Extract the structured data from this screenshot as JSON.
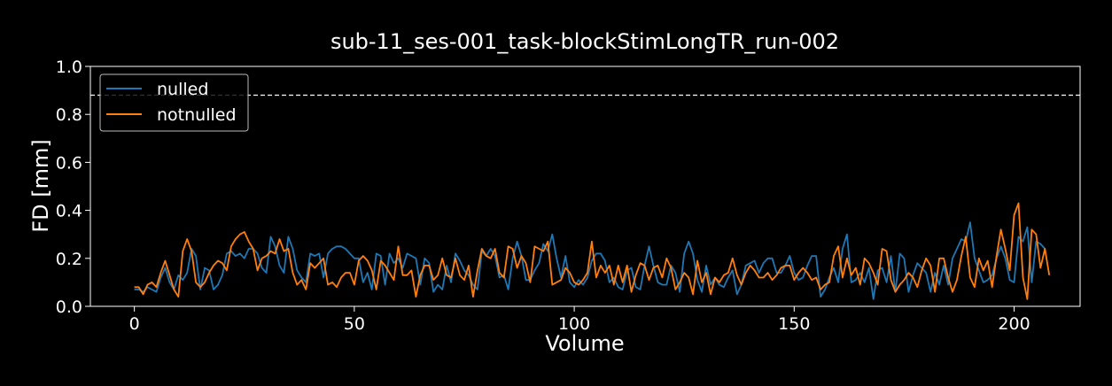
{
  "chart_data": {
    "type": "line",
    "title": "sub-11_ses-001_task-blockStimLongTR_run-002",
    "xlabel": "Volume",
    "ylabel": "FD [mm]",
    "xlim": [
      -10,
      215
    ],
    "ylim": [
      0.0,
      1.0
    ],
    "xticks": [
      0,
      50,
      100,
      150,
      200
    ],
    "yticks": [
      0.0,
      0.2,
      0.4,
      0.6,
      0.8,
      1.0
    ],
    "ytick_labels": [
      "0.0",
      "0.2",
      "0.4",
      "0.6",
      "0.8",
      "1.0"
    ],
    "threshold": 0.88,
    "legend_position": "top-left",
    "series": [
      {
        "name": "nulled",
        "color": "#1f77b4",
        "values": [
          0.07,
          0.07,
          0.06,
          0.08,
          0.07,
          0.06,
          0.12,
          0.16,
          0.1,
          0.07,
          0.13,
          0.11,
          0.14,
          0.24,
          0.21,
          0.07,
          0.16,
          0.15,
          0.07,
          0.09,
          0.13,
          0.22,
          0.23,
          0.21,
          0.22,
          0.2,
          0.24,
          0.24,
          0.22,
          0.16,
          0.14,
          0.29,
          0.25,
          0.17,
          0.14,
          0.29,
          0.24,
          0.15,
          0.12,
          0.1,
          0.22,
          0.21,
          0.22,
          0.12,
          0.22,
          0.24,
          0.25,
          0.25,
          0.24,
          0.22,
          0.2,
          0.2,
          0.1,
          0.14,
          0.07,
          0.22,
          0.21,
          0.09,
          0.22,
          0.18,
          0.2,
          0.16,
          0.22,
          0.21,
          0.2,
          0.09,
          0.2,
          0.18,
          0.06,
          0.09,
          0.07,
          0.17,
          0.1,
          0.22,
          0.19,
          0.15,
          0.13,
          0.09,
          0.07,
          0.23,
          0.21,
          0.24,
          0.21,
          0.12,
          0.13,
          0.07,
          0.2,
          0.27,
          0.21,
          0.11,
          0.11,
          0.15,
          0.18,
          0.26,
          0.23,
          0.3,
          0.2,
          0.12,
          0.21,
          0.1,
          0.08,
          0.11,
          0.09,
          0.12,
          0.19,
          0.22,
          0.22,
          0.19,
          0.1,
          0.12,
          0.08,
          0.07,
          0.15,
          0.16,
          0.08,
          0.07,
          0.17,
          0.25,
          0.17,
          0.1,
          0.09,
          0.09,
          0.17,
          0.14,
          0.06,
          0.22,
          0.27,
          0.22,
          0.11,
          0.06,
          0.17,
          0.09,
          0.12,
          0.09,
          0.08,
          0.12,
          0.15,
          0.05,
          0.09,
          0.17,
          0.18,
          0.19,
          0.14,
          0.18,
          0.2,
          0.2,
          0.14,
          0.14,
          0.17,
          0.21,
          0.14,
          0.11,
          0.12,
          0.17,
          0.21,
          0.21,
          0.04,
          0.07,
          0.12,
          0.16,
          0.1,
          0.24,
          0.3,
          0.1,
          0.11,
          0.14,
          0.1,
          0.16,
          0.03,
          0.15,
          0.16,
          0.1,
          0.21,
          0.06,
          0.22,
          0.2,
          0.06,
          0.13,
          0.18,
          0.16,
          0.14,
          0.06,
          0.14,
          0.09,
          0.17,
          0.09,
          0.2,
          0.24,
          0.28,
          0.27,
          0.35,
          0.2,
          0.15,
          0.1,
          0.11,
          0.13,
          0.2,
          0.25,
          0.2,
          0.11,
          0.1,
          0.29,
          0.27,
          0.33,
          0.1,
          0.27,
          0.26,
          0.24
        ]
      },
      {
        "name": "notnulled",
        "color": "#ff7f0e",
        "values": [
          0.08,
          0.08,
          0.05,
          0.09,
          0.1,
          0.08,
          0.14,
          0.19,
          0.13,
          0.07,
          0.04,
          0.23,
          0.28,
          0.23,
          0.1,
          0.08,
          0.1,
          0.14,
          0.17,
          0.19,
          0.18,
          0.15,
          0.25,
          0.28,
          0.3,
          0.31,
          0.27,
          0.24,
          0.15,
          0.2,
          0.21,
          0.23,
          0.22,
          0.28,
          0.23,
          0.24,
          0.14,
          0.09,
          0.11,
          0.07,
          0.18,
          0.16,
          0.18,
          0.2,
          0.09,
          0.1,
          0.08,
          0.12,
          0.14,
          0.14,
          0.09,
          0.19,
          0.21,
          0.19,
          0.15,
          0.07,
          0.19,
          0.17,
          0.14,
          0.11,
          0.25,
          0.13,
          0.13,
          0.15,
          0.04,
          0.13,
          0.17,
          0.17,
          0.11,
          0.13,
          0.2,
          0.13,
          0.12,
          0.2,
          0.13,
          0.11,
          0.17,
          0.04,
          0.15,
          0.24,
          0.21,
          0.2,
          0.24,
          0.14,
          0.12,
          0.25,
          0.24,
          0.16,
          0.21,
          0.18,
          0.1,
          0.25,
          0.24,
          0.23,
          0.27,
          0.09,
          0.1,
          0.11,
          0.16,
          0.14,
          0.1,
          0.09,
          0.11,
          0.14,
          0.27,
          0.12,
          0.17,
          0.14,
          0.17,
          0.09,
          0.17,
          0.1,
          0.17,
          0.06,
          0.13,
          0.18,
          0.17,
          0.11,
          0.16,
          0.17,
          0.12,
          0.2,
          0.16,
          0.07,
          0.1,
          0.14,
          0.12,
          0.05,
          0.19,
          0.1,
          0.14,
          0.05,
          0.12,
          0.1,
          0.13,
          0.14,
          0.2,
          0.13,
          0.09,
          0.14,
          0.17,
          0.15,
          0.12,
          0.12,
          0.14,
          0.11,
          0.13,
          0.16,
          0.17,
          0.17,
          0.11,
          0.14,
          0.16,
          0.14,
          0.11,
          0.12,
          0.07,
          0.09,
          0.1,
          0.21,
          0.25,
          0.12,
          0.2,
          0.13,
          0.16,
          0.09,
          0.2,
          0.18,
          0.14,
          0.09,
          0.24,
          0.23,
          0.11,
          0.06,
          0.09,
          0.11,
          0.14,
          0.12,
          0.08,
          0.15,
          0.2,
          0.17,
          0.06,
          0.2,
          0.2,
          0.12,
          0.06,
          0.11,
          0.21,
          0.29,
          0.12,
          0.08,
          0.2,
          0.15,
          0.19,
          0.08,
          0.21,
          0.32,
          0.24,
          0.15,
          0.38,
          0.43,
          0.12,
          0.03,
          0.32,
          0.3,
          0.16,
          0.24,
          0.13
        ]
      }
    ]
  }
}
